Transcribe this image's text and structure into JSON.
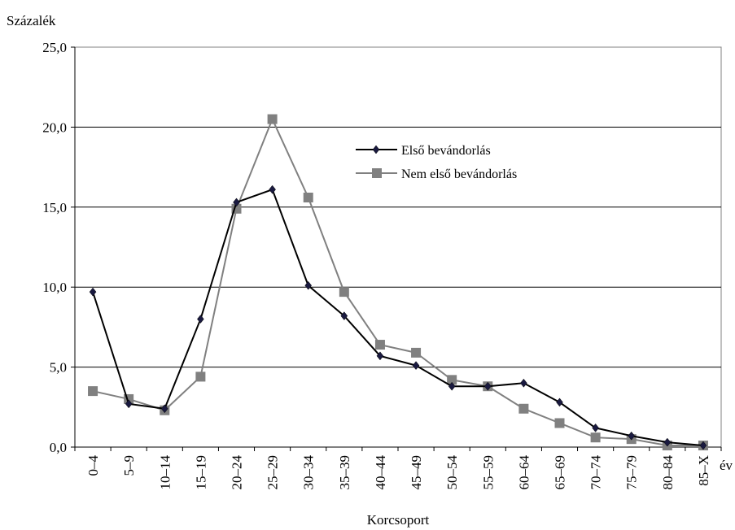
{
  "chart_data": {
    "type": "line",
    "ylabel": "Százalék",
    "xlabel": "Korcsoport",
    "x_unit_label": "év",
    "ylim": [
      0,
      25
    ],
    "y_ticks": [
      "0,0",
      "5,0",
      "10,0",
      "15,0",
      "20,0",
      "25,0"
    ],
    "y_tick_values": [
      0,
      5,
      10,
      15,
      20,
      25
    ],
    "grid": true,
    "legend_position": "upper-right-center",
    "categories": [
      "0–4",
      "5–9",
      "10–14",
      "15–19",
      "20–24",
      "25–29",
      "30–34",
      "35–39",
      "40–44",
      "45–49",
      "50–54",
      "55–59",
      "60–64",
      "65–69",
      "70–74",
      "75–79",
      "80–84",
      "85–X"
    ],
    "series": [
      {
        "name": "Első bevándorlás",
        "color": "#000000",
        "marker": "diamond",
        "values": [
          9.7,
          2.7,
          2.4,
          8.0,
          15.3,
          16.1,
          10.1,
          8.2,
          5.7,
          5.1,
          3.8,
          3.8,
          4.0,
          2.8,
          1.2,
          0.7,
          0.3,
          0.1
        ]
      },
      {
        "name": "Nem első bevándorlás",
        "color": "#808080",
        "marker": "square",
        "values": [
          3.5,
          3.0,
          2.3,
          4.4,
          14.9,
          20.5,
          15.6,
          9.7,
          6.4,
          5.9,
          4.2,
          3.8,
          2.4,
          1.5,
          0.6,
          0.5,
          0.1,
          0.1
        ]
      }
    ]
  }
}
